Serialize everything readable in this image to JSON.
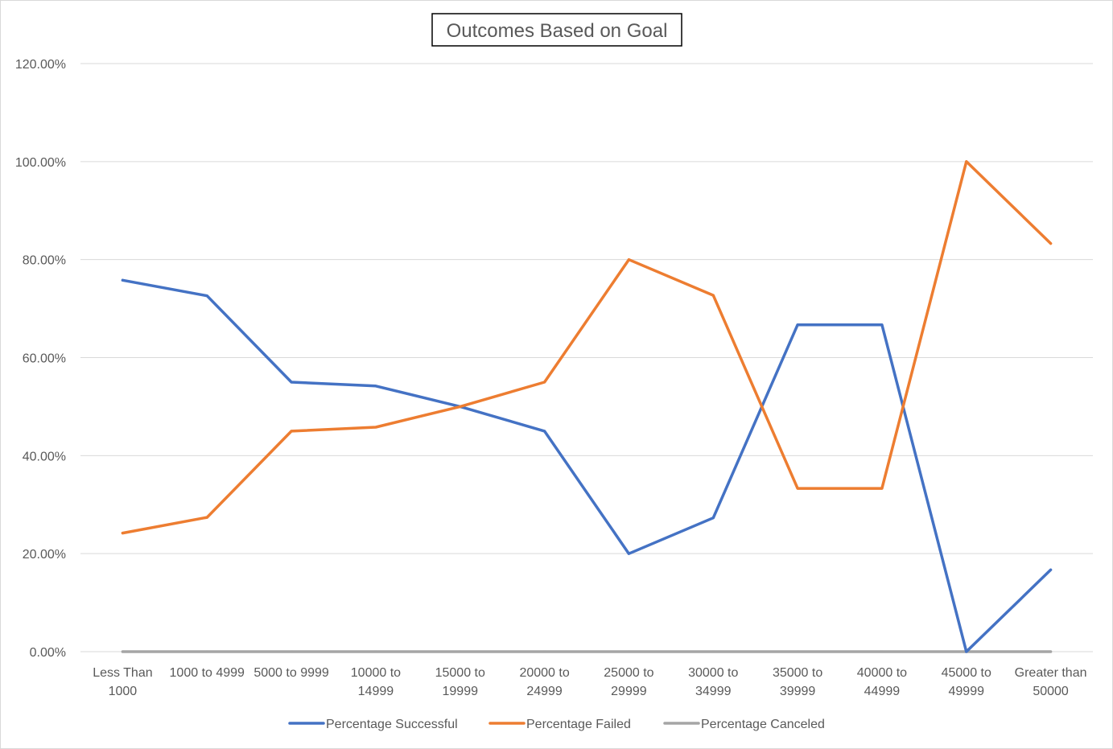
{
  "chart_data": {
    "type": "line",
    "title": "Outcomes Based on Goal",
    "xlabel": "",
    "ylabel": "",
    "ylim": [
      0,
      1.2
    ],
    "y_ticks": [
      0,
      0.2,
      0.4,
      0.6,
      0.8,
      1.0,
      1.2
    ],
    "y_tick_labels": [
      "0.00%",
      "20.00%",
      "40.00%",
      "60.00%",
      "80.00%",
      "100.00%",
      "120.00%"
    ],
    "grid": true,
    "legend_position": "bottom",
    "categories": [
      [
        "Less Than",
        "1000"
      ],
      [
        "1000 to 4999"
      ],
      [
        "5000 to 9999"
      ],
      [
        "10000 to",
        "14999"
      ],
      [
        "15000 to",
        "19999"
      ],
      [
        "20000 to",
        "24999"
      ],
      [
        "25000 to",
        "29999"
      ],
      [
        "30000 to",
        "34999"
      ],
      [
        "35000 to",
        "39999"
      ],
      [
        "40000 to",
        "44999"
      ],
      [
        "45000 to",
        "49999"
      ],
      [
        "Greater than",
        "50000"
      ]
    ],
    "series": [
      {
        "name": "Percentage Successful",
        "color": "#4472C4",
        "values": [
          0.758,
          0.726,
          0.55,
          0.542,
          0.5,
          0.45,
          0.2,
          0.273,
          0.667,
          0.667,
          0.0,
          0.167
        ]
      },
      {
        "name": "Percentage Failed",
        "color": "#ED7D31",
        "values": [
          0.242,
          0.274,
          0.45,
          0.458,
          0.5,
          0.55,
          0.8,
          0.727,
          0.333,
          0.333,
          1.0,
          0.833
        ]
      },
      {
        "name": "Percentage Canceled",
        "color": "#A5A5A5",
        "values": [
          0,
          0,
          0,
          0,
          0,
          0,
          0,
          0,
          0,
          0,
          0,
          0
        ]
      }
    ]
  }
}
